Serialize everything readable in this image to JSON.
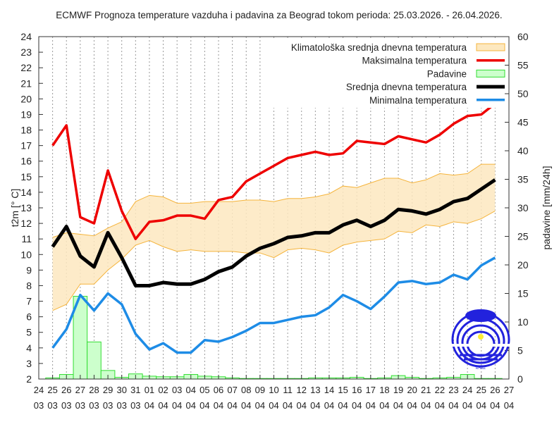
{
  "chart_data": {
    "type": "line",
    "title": "ECMWF Prognoza temperature vazduha i padavina za Beograd tokom perioda: 25.03.2026. - 26.04.2026.",
    "ylabel": "t2m [° C]",
    "y2label": "padavine [mm/24h]",
    "ylim": [
      2,
      24
    ],
    "y2lim": [
      0,
      60
    ],
    "legend_position": "top-right",
    "grid": "vertical dotted",
    "x_ticks": [
      [
        "24",
        "03"
      ],
      [
        "25",
        "03"
      ],
      [
        "26",
        "03"
      ],
      [
        "27",
        "03"
      ],
      [
        "28",
        "03"
      ],
      [
        "29",
        "03"
      ],
      [
        "30",
        "03"
      ],
      [
        "31",
        "03"
      ],
      [
        "01",
        "04"
      ],
      [
        "02",
        "04"
      ],
      [
        "03",
        "04"
      ],
      [
        "04",
        "04"
      ],
      [
        "05",
        "04"
      ],
      [
        "06",
        "04"
      ],
      [
        "07",
        "04"
      ],
      [
        "08",
        "04"
      ],
      [
        "09",
        "04"
      ],
      [
        "10",
        "04"
      ],
      [
        "11",
        "04"
      ],
      [
        "12",
        "04"
      ],
      [
        "13",
        "04"
      ],
      [
        "14",
        "04"
      ],
      [
        "15",
        "04"
      ],
      [
        "16",
        "04"
      ],
      [
        "17",
        "04"
      ],
      [
        "18",
        "04"
      ],
      [
        "19",
        "04"
      ],
      [
        "20",
        "04"
      ],
      [
        "21",
        "04"
      ],
      [
        "22",
        "04"
      ],
      [
        "23",
        "04"
      ],
      [
        "24",
        "04"
      ],
      [
        "25",
        "04"
      ],
      [
        "26",
        "04"
      ],
      [
        "27",
        "04"
      ]
    ],
    "x": [
      "25.03",
      "26.03",
      "27.03",
      "28.03",
      "29.03",
      "30.03",
      "31.03",
      "01.04",
      "02.04",
      "03.04",
      "04.04",
      "05.04",
      "06.04",
      "07.04",
      "08.04",
      "09.04",
      "10.04",
      "11.04",
      "12.04",
      "13.04",
      "14.04",
      "15.04",
      "16.04",
      "17.04",
      "18.04",
      "19.04",
      "20.04",
      "21.04",
      "22.04",
      "23.04",
      "24.04",
      "25.04",
      "26.04"
    ],
    "series": [
      {
        "name": "Klimatološka srednja dnevna temperatura",
        "kind": "band",
        "color": "#fde8bf",
        "edge": "#f5b43c",
        "upper": [
          11.1,
          11.4,
          11.3,
          11.2,
          11.7,
          12.1,
          13.4,
          13.8,
          13.7,
          13.3,
          13.3,
          13.4,
          13.4,
          13.4,
          13.5,
          13.5,
          13.4,
          13.6,
          13.6,
          13.7,
          13.9,
          14.4,
          14.3,
          14.6,
          14.9,
          14.9,
          14.6,
          14.8,
          15.2,
          15.1,
          15.2,
          15.8,
          15.8
        ],
        "lower": [
          6.4,
          6.8,
          8.1,
          8.1,
          9.0,
          9.7,
          10.6,
          10.9,
          10.5,
          10.2,
          10.3,
          10.2,
          10.2,
          10.2,
          10.1,
          10.1,
          9.8,
          10.3,
          10.4,
          10.3,
          10.1,
          10.6,
          10.8,
          10.9,
          11.0,
          11.5,
          11.4,
          11.9,
          11.8,
          12.1,
          12.0,
          12.3,
          12.8
        ]
      },
      {
        "name": "Maksimalna temperatura",
        "kind": "line",
        "color": "#ee0000",
        "values": [
          17.0,
          18.3,
          12.4,
          12.0,
          15.4,
          12.8,
          11.0,
          12.1,
          12.2,
          12.5,
          12.5,
          12.3,
          13.5,
          13.7,
          14.7,
          15.2,
          15.7,
          16.2,
          16.4,
          16.6,
          16.4,
          16.5,
          17.3,
          17.2,
          17.1,
          17.6,
          17.4,
          17.2,
          17.7,
          18.4,
          18.9,
          19.0,
          19.7
        ]
      },
      {
        "name": "Padavine",
        "kind": "bar",
        "axis": "y2",
        "color": "#ccffcc",
        "edge": "#33dd33",
        "values": [
          0.2,
          0.8,
          14.5,
          6.5,
          1.5,
          0.3,
          0.9,
          0.5,
          0.4,
          0.4,
          0.8,
          0.5,
          0.4,
          0.2,
          0.1,
          0.1,
          0.1,
          0.1,
          0.1,
          0.2,
          0.2,
          0.2,
          0.3,
          0.1,
          0.2,
          0.6,
          0.3,
          0.1,
          0.2,
          0.3,
          0.8,
          0.1,
          0.1
        ]
      },
      {
        "name": "Srednja dnevna temperatura",
        "kind": "line",
        "color": "#000000",
        "values": [
          10.5,
          11.8,
          9.9,
          9.2,
          11.4,
          9.8,
          8.0,
          8.0,
          8.2,
          8.1,
          8.1,
          8.4,
          8.9,
          9.2,
          9.9,
          10.4,
          10.7,
          11.1,
          11.2,
          11.4,
          11.4,
          11.9,
          12.2,
          11.8,
          12.2,
          12.9,
          12.8,
          12.6,
          12.9,
          13.4,
          13.6,
          14.2,
          14.8
        ]
      },
      {
        "name": "Minimalna temperatura",
        "kind": "line",
        "color": "#1e8ce6",
        "values": [
          4.0,
          5.2,
          7.4,
          6.4,
          7.5,
          6.8,
          4.9,
          3.9,
          4.3,
          3.7,
          3.7,
          4.5,
          4.4,
          4.7,
          5.1,
          5.6,
          5.6,
          5.8,
          6.0,
          6.1,
          6.6,
          7.4,
          7.0,
          6.5,
          7.3,
          8.2,
          8.3,
          8.1,
          8.2,
          8.7,
          8.4,
          9.3,
          9.8
        ]
      }
    ],
    "logo_text": "RHMZ Srbije"
  }
}
